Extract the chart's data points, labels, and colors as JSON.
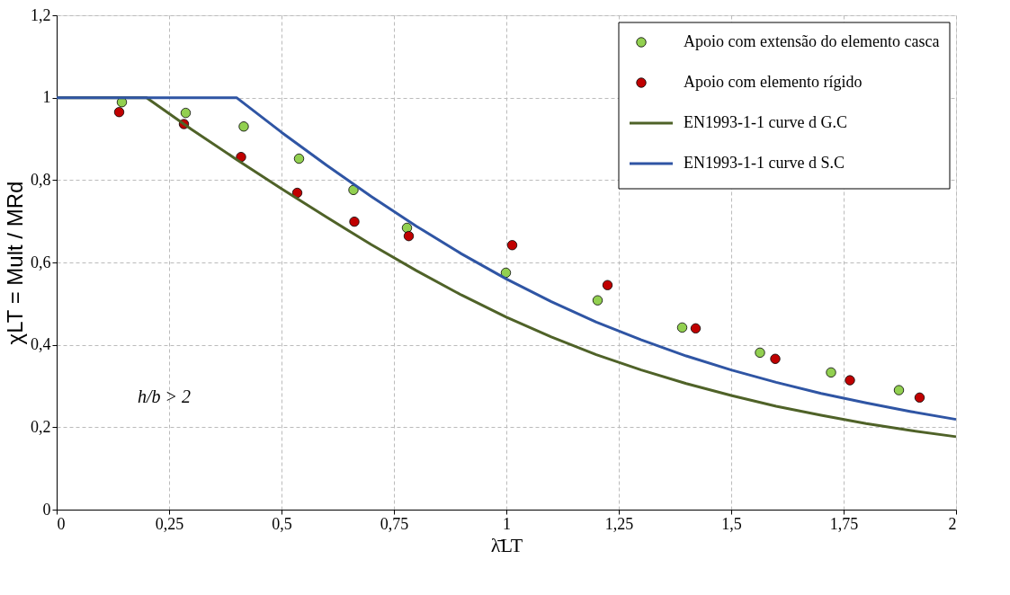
{
  "chart_data": {
    "type": "scatter",
    "xlabel": "λ̄LT",
    "ylabel": "χLT = Mult / MRd",
    "xlim": [
      0,
      2
    ],
    "ylim": [
      0,
      1.2
    ],
    "xticks": [
      0,
      {
        "value": 0.25,
        "label": "0,25"
      },
      {
        "value": 0.5,
        "label": "0,5"
      },
      {
        "value": 0.75,
        "label": "0,75"
      },
      1,
      {
        "value": 1.25,
        "label": "1,25"
      },
      {
        "value": 1.5,
        "label": "1,5"
      },
      {
        "value": 1.75,
        "label": "1,75"
      },
      2
    ],
    "yticks": [
      0,
      {
        "value": 0.2,
        "label": "0,2"
      },
      {
        "value": 0.4,
        "label": "0,4"
      },
      {
        "value": 0.6,
        "label": "0,6"
      },
      {
        "value": 0.8,
        "label": "0,8"
      },
      1,
      {
        "value": 1.2,
        "label": "1,2"
      }
    ],
    "grid": true,
    "legend": "top right",
    "annotations": [
      "h/b > 2"
    ],
    "series": [
      {
        "name": "Apoio com extensão do elemento casca",
        "marker": "circle",
        "color": "#92d050",
        "x": [
          0.145,
          0.287,
          0.416,
          0.539,
          0.66,
          0.779,
          0.999,
          1.203,
          1.391,
          1.564,
          1.722,
          1.873
        ],
        "values": [
          0.989,
          0.963,
          0.93,
          0.852,
          0.776,
          0.684,
          0.575,
          0.508,
          0.442,
          0.381,
          0.333,
          0.29
        ]
      },
      {
        "name": "Apoio com elemento rígido",
        "marker": "circle",
        "color": "#c00000",
        "x": [
          0.139,
          0.283,
          0.41,
          0.535,
          0.662,
          0.783,
          1.013,
          1.225,
          1.421,
          1.598,
          1.764,
          1.919
        ],
        "values": [
          0.965,
          0.936,
          0.856,
          0.769,
          0.699,
          0.664,
          0.642,
          0.545,
          0.44,
          0.366,
          0.314,
          0.272
        ]
      },
      {
        "name": "EN1993-1-1 curve d G.C",
        "type": "line",
        "line_style": "solid",
        "color": "#4f6228",
        "x": [
          0,
          0.2,
          0.3,
          0.4,
          0.5,
          0.6,
          0.7,
          0.8,
          0.9,
          1.0,
          1.1,
          1.2,
          1.3,
          1.4,
          1.5,
          1.6,
          1.7,
          1.8,
          1.9,
          2.0
        ],
        "values": [
          1,
          1,
          0.923,
          0.85,
          0.779,
          0.71,
          0.643,
          0.58,
          0.521,
          0.467,
          0.419,
          0.376,
          0.339,
          0.306,
          0.277,
          0.251,
          0.229,
          0.209,
          0.192,
          0.177
        ]
      },
      {
        "name": "EN1993-1-1 curve d S.C",
        "type": "line",
        "line_style": "solid",
        "color": "#2f55a4",
        "x": [
          0,
          0.4,
          0.5,
          0.6,
          0.7,
          0.8,
          0.9,
          1.0,
          1.1,
          1.2,
          1.3,
          1.4,
          1.5,
          1.6,
          1.7,
          1.8,
          1.9,
          2.0
        ],
        "values": [
          1,
          1,
          0.916,
          0.836,
          0.76,
          0.688,
          0.621,
          0.56,
          0.505,
          0.455,
          0.412,
          0.373,
          0.339,
          0.309,
          0.282,
          0.259,
          0.238,
          0.219
        ]
      }
    ]
  }
}
